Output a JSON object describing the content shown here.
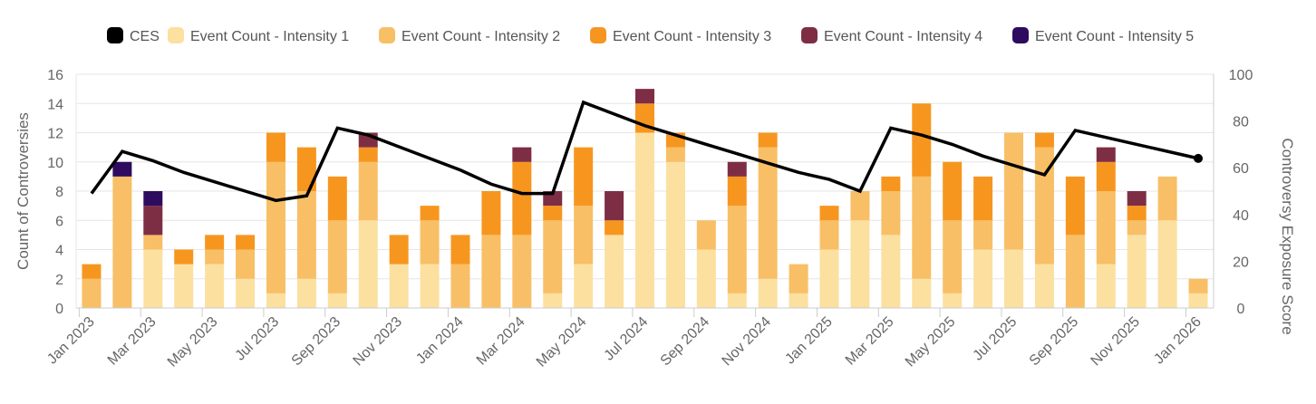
{
  "chart_data": {
    "type": "bar",
    "stacked": true,
    "categories": [
      "Jan 2023",
      "Feb 2023",
      "Mar 2023",
      "Apr 2023",
      "May 2023",
      "Jun 2023",
      "Jul 2023",
      "Aug 2023",
      "Sep 2023",
      "Oct 2023",
      "Nov 2023",
      "Dec 2023",
      "Jan 2024",
      "Feb 2024",
      "Mar 2024",
      "Apr 2024",
      "May 2024",
      "Jun 2024",
      "Jul 2024",
      "Aug 2024",
      "Sep 2024",
      "Oct 2024",
      "Nov 2024",
      "Dec 2024",
      "Jan 2025",
      "Feb 2025",
      "Mar 2025",
      "Apr 2025",
      "May 2025",
      "Jun 2025",
      "Jul 2025",
      "Aug 2025",
      "Sep 2025",
      "Oct 2025",
      "Nov 2025",
      "Dec 2025",
      "Jan 2026"
    ],
    "x_tick_labels": [
      "Jan 2023",
      "Mar 2023",
      "May 2023",
      "Jul 2023",
      "Sep 2023",
      "Nov 2023",
      "Jan 2024",
      "Mar 2024",
      "May 2024",
      "Jul 2024",
      "Sep 2024",
      "Nov 2024",
      "Jan 2025",
      "Mar 2025",
      "May 2025",
      "Jul 2025",
      "Sep 2025",
      "Nov 2025",
      "Jan 2026"
    ],
    "series": [
      {
        "name": "Event Count - Intensity 1",
        "color": "#fbe0a0",
        "values": [
          0,
          0,
          4,
          3,
          3,
          2,
          1,
          2,
          1,
          6,
          3,
          3,
          0,
          0,
          0,
          1,
          3,
          5,
          12,
          10,
          4,
          1,
          2,
          1,
          4,
          6,
          5,
          2,
          1,
          4,
          4,
          3,
          0,
          3,
          5,
          6,
          1
        ]
      },
      {
        "name": "Event Count - Intensity 2",
        "color": "#f8bf66",
        "values": [
          2,
          9,
          1,
          0,
          1,
          2,
          9,
          6,
          5,
          4,
          0,
          3,
          3,
          5,
          5,
          5,
          4,
          0,
          0,
          1,
          2,
          6,
          9,
          2,
          2,
          2,
          3,
          7,
          5,
          2,
          8,
          8,
          5,
          5,
          1,
          3,
          1
        ]
      },
      {
        "name": "Event Count - Intensity 3",
        "color": "#f7961f",
        "values": [
          1,
          0,
          0,
          1,
          1,
          1,
          2,
          3,
          3,
          1,
          2,
          1,
          2,
          3,
          5,
          1,
          4,
          1,
          2,
          1,
          0,
          2,
          1,
          0,
          1,
          0,
          1,
          5,
          4,
          3,
          0,
          1,
          4,
          2,
          1,
          0,
          0
        ]
      },
      {
        "name": "Event Count - Intensity 4",
        "color": "#7e2e44",
        "values": [
          0,
          0,
          2,
          0,
          0,
          0,
          0,
          0,
          0,
          1,
          0,
          0,
          0,
          0,
          1,
          1,
          0,
          2,
          1,
          0,
          0,
          1,
          0,
          0,
          0,
          0,
          0,
          0,
          0,
          0,
          0,
          0,
          0,
          1,
          1,
          0,
          0
        ]
      },
      {
        "name": "Event Count - Intensity 5",
        "color": "#2e0b5e",
        "values": [
          0,
          1,
          1,
          0,
          0,
          0,
          0,
          0,
          0,
          0,
          0,
          0,
          0,
          0,
          0,
          0,
          0,
          0,
          0,
          0,
          0,
          0,
          0,
          0,
          0,
          0,
          0,
          0,
          0,
          0,
          0,
          0,
          0,
          0,
          0,
          0,
          0
        ]
      }
    ],
    "line": {
      "name": "CES",
      "color": "#000000",
      "axis": "right",
      "values": [
        49,
        67,
        63,
        58,
        54,
        50,
        46,
        48,
        77,
        74,
        69,
        64,
        59,
        53,
        49,
        49,
        88,
        83,
        78,
        74,
        70,
        66,
        62,
        58,
        55,
        50,
        77,
        74,
        70,
        65,
        61,
        57,
        76,
        73,
        70,
        67,
        64
      ]
    },
    "ylabel": "Count of Controversies",
    "ylim": [
      0,
      16
    ],
    "yticks": [
      0,
      2,
      4,
      6,
      8,
      10,
      12,
      14,
      16
    ],
    "y2label": "Controversy Exposure Score",
    "y2lim": [
      0,
      100
    ],
    "y2ticks": [
      0,
      20,
      40,
      60,
      80,
      100
    ],
    "legend": {
      "position": "top",
      "order": [
        "CES",
        "Event Count - Intensity 1",
        "Event Count - Intensity 2",
        "Event Count - Intensity 3",
        "Event Count - Intensity 4",
        "Event Count - Intensity 5"
      ]
    },
    "grid": true
  }
}
